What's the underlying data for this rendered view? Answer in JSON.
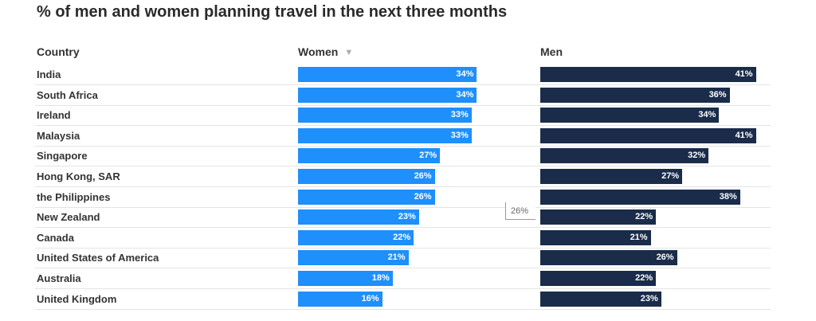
{
  "chart_data": {
    "type": "bar",
    "title": "% of men and women planning travel in the next three months",
    "column_headers": {
      "country": "Country",
      "women": "Women",
      "men": "Men"
    },
    "categories": [
      "India",
      "South Africa",
      "Ireland",
      "Malaysia",
      "Singapore",
      "Hong Kong, SAR",
      "the Philippines",
      "New Zealand",
      "Canada",
      "United States of America",
      "Australia",
      "United Kingdom"
    ],
    "series": [
      {
        "name": "Women",
        "color": "#1e8ffb",
        "values": [
          34,
          34,
          33,
          33,
          27,
          26,
          26,
          23,
          22,
          21,
          18,
          16
        ]
      },
      {
        "name": "Men",
        "color": "#1a2c4a",
        "values": [
          41,
          36,
          34,
          41,
          32,
          27,
          38,
          22,
          21,
          26,
          22,
          23
        ]
      }
    ],
    "value_suffix": "%",
    "sort_indicator": "sort-descending-icon on Women column",
    "tooltip": {
      "value": "26%"
    }
  }
}
